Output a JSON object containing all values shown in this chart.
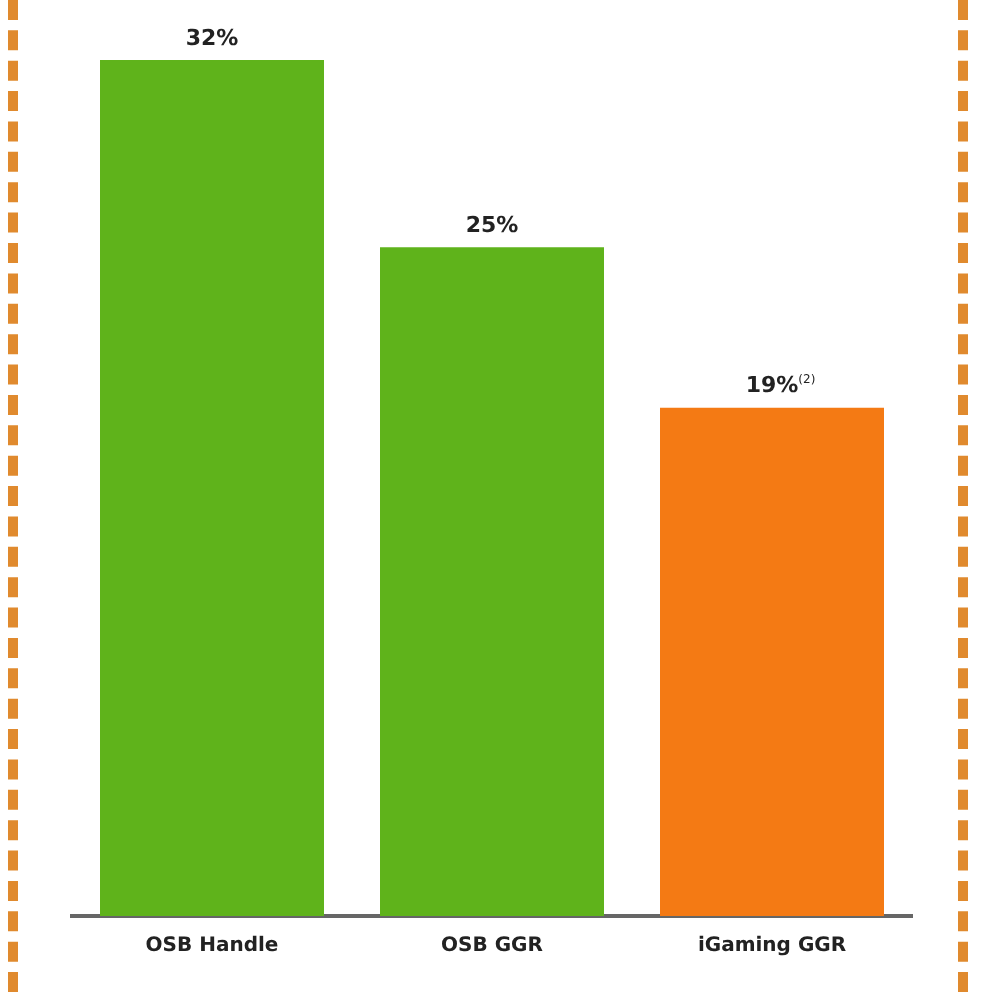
{
  "chart_data": {
    "type": "bar",
    "categories": [
      "OSB Handle",
      "OSB GGR",
      "iGaming GGR"
    ],
    "values": [
      32,
      25,
      19
    ],
    "colors": [
      "#5fb31b",
      "#5fb31b",
      "#f47a14"
    ],
    "value_labels": [
      "32%",
      "25%",
      "19%$^{(2)}$"
    ],
    "grid": false,
    "legend": false
  }
}
